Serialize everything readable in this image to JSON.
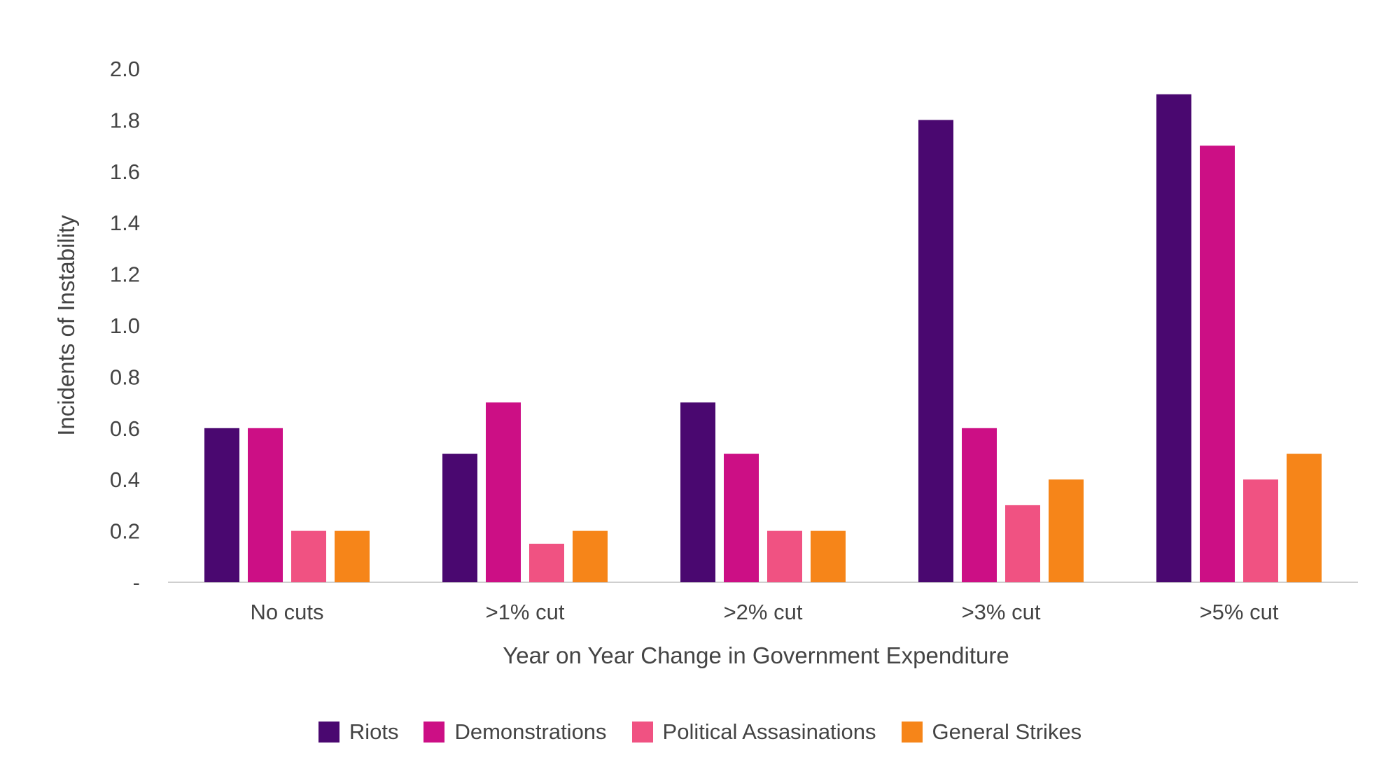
{
  "chart_data": {
    "type": "bar",
    "categories": [
      "No cuts",
      ">1% cut",
      ">2% cut",
      ">3% cut",
      ">5% cut"
    ],
    "series": [
      {
        "name": "Riots",
        "color": "#4a0870",
        "values": [
          0.6,
          0.5,
          0.7,
          1.8,
          1.9
        ]
      },
      {
        "name": "Demonstrations",
        "color": "#cc0f85",
        "values": [
          0.6,
          0.7,
          0.5,
          0.6,
          1.7
        ]
      },
      {
        "name": "Political Assasinations",
        "color": "#f05282",
        "values": [
          0.2,
          0.15,
          0.2,
          0.3,
          0.4
        ]
      },
      {
        "name": "General Strikes",
        "color": "#f68519",
        "values": [
          0.2,
          0.2,
          0.2,
          0.4,
          0.5
        ]
      }
    ],
    "xlabel": "Year on Year Change in Government Expenditure",
    "ylabel": "Incidents of Instability",
    "ylim": [
      0,
      2.0
    ],
    "yticks": [
      "-",
      "0.2",
      "0.4",
      "0.6",
      "0.8",
      "1.0",
      "1.2",
      "1.4",
      "1.6",
      "1.8",
      "2.0"
    ],
    "grid": false,
    "legend_position": "bottom"
  }
}
